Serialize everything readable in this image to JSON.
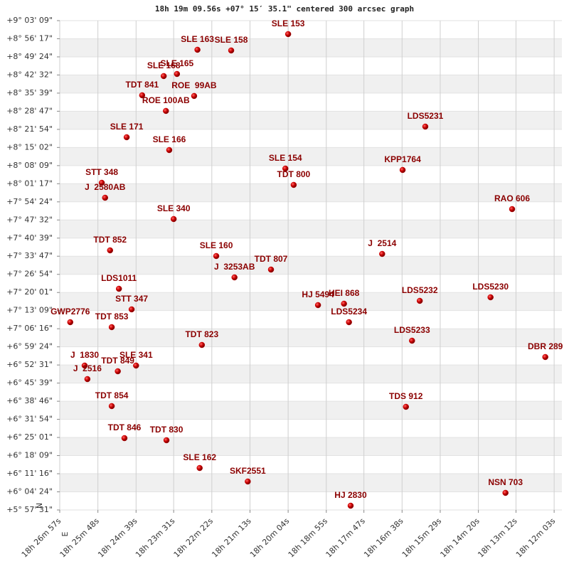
{
  "chart_data": {
    "type": "scatter",
    "title": "18h 19m 09.56s +07° 15′ 35.1\" centered 300 arcsec graph",
    "orientation": {
      "north": "N",
      "east": "E"
    },
    "xlim": [
      66417,
      65509
    ],
    "ylim": [
      21451,
      32589
    ],
    "xticks": [
      {
        "value": 66417,
        "label": "18h 26m 57s"
      },
      {
        "value": 66348,
        "label": "18h 25m 48s"
      },
      {
        "value": 66279,
        "label": "18h 24m 39s"
      },
      {
        "value": 66211,
        "label": "18h 23m 31s"
      },
      {
        "value": 66142,
        "label": "18h 22m 22s"
      },
      {
        "value": 66073,
        "label": "18h 21m 13s"
      },
      {
        "value": 66004,
        "label": "18h 20m 04s"
      },
      {
        "value": 65935,
        "label": "18h 18m 55s"
      },
      {
        "value": 65867,
        "label": "18h 17m 47s"
      },
      {
        "value": 65798,
        "label": "18h 16m 38s"
      },
      {
        "value": 65729,
        "label": "18h 15m 29s"
      },
      {
        "value": 65660,
        "label": "18h 14m 20s"
      },
      {
        "value": 65592,
        "label": "18h 13m 12s"
      },
      {
        "value": 65523,
        "label": "18h 12m 03s"
      }
    ],
    "yticks": [
      {
        "value": 32589,
        "label": "+9° 03' 09\""
      },
      {
        "value": 32177,
        "label": "+8° 56' 17\""
      },
      {
        "value": 31764,
        "label": "+8° 49' 24\""
      },
      {
        "value": 31352,
        "label": "+8° 42' 32\""
      },
      {
        "value": 30939,
        "label": "+8° 35' 39\""
      },
      {
        "value": 30527,
        "label": "+8° 28' 47\""
      },
      {
        "value": 30114,
        "label": "+8° 21' 54\""
      },
      {
        "value": 29702,
        "label": "+8° 15' 02\""
      },
      {
        "value": 29289,
        "label": "+8° 08' 09\""
      },
      {
        "value": 28877,
        "label": "+8° 01' 17\""
      },
      {
        "value": 28464,
        "label": "+7° 54' 24\""
      },
      {
        "value": 28052,
        "label": "+7° 47' 32\""
      },
      {
        "value": 27639,
        "label": "+7° 40' 39\""
      },
      {
        "value": 27227,
        "label": "+7° 33' 47\""
      },
      {
        "value": 26814,
        "label": "+7° 26' 54\""
      },
      {
        "value": 26401,
        "label": "+7° 20' 01\""
      },
      {
        "value": 25989,
        "label": "+7° 13' 09\""
      },
      {
        "value": 25576,
        "label": "+7° 06' 16\""
      },
      {
        "value": 25164,
        "label": "+6° 59' 24\""
      },
      {
        "value": 24751,
        "label": "+6° 52' 31\""
      },
      {
        "value": 24339,
        "label": "+6° 45' 39\""
      },
      {
        "value": 23926,
        "label": "+6° 38' 46\""
      },
      {
        "value": 23514,
        "label": "+6° 31' 54\""
      },
      {
        "value": 23101,
        "label": "+6° 25' 01\""
      },
      {
        "value": 22689,
        "label": "+6° 18' 09\""
      },
      {
        "value": 22276,
        "label": "+6° 11' 16\""
      },
      {
        "value": 21864,
        "label": "+6° 04' 24\""
      },
      {
        "value": 21451,
        "label": "+5° 57' 31\""
      }
    ],
    "labels": [
      "SLE 153",
      "SLE 163",
      "SLE 158",
      "SLE 165",
      "SLE 168",
      "TDT 841",
      "ROE  99AB",
      "ROE 100AB",
      "LDS5231",
      "SLE 171",
      "SLE 166",
      "SLE 154",
      "KPP1764",
      "TDT 800",
      "STT 348",
      "J  2580AB",
      "RAO 606",
      "SLE 340",
      "TDT 852",
      "J  2514",
      "SLE 160",
      "TDT 807",
      "J  3253AB",
      "LDS1011",
      "LDS5230",
      "LDS5232",
      "HEI 868",
      "HJ 5494",
      "STT 347",
      "LDS5234",
      "GWP2776",
      "TDT 853",
      "LDS5233",
      "TDT 823",
      "DBR 289",
      "SLE 341",
      "J  1830",
      "TDT 849",
      "J  2516",
      "TDS 912",
      "TDT 854",
      "TDT 846",
      "TDT 830",
      "SLE 162",
      "SKF2551",
      "NSN 703",
      "HJ 2830"
    ],
    "x": [
      66004,
      66168,
      66107,
      66205,
      66229,
      66268,
      66174,
      66225,
      65756,
      66296,
      66219,
      66009,
      65797,
      65994,
      66341,
      66335,
      65599,
      66211,
      66326,
      65834,
      66134,
      66035,
      66101,
      66310,
      65638,
      65766,
      65903,
      65950,
      66287,
      65894,
      66398,
      66323,
      65780,
      66160,
      65539,
      66279,
      66372,
      66312,
      66367,
      65791,
      66323,
      66300,
      66224,
      66164,
      66077,
      65611,
      65891
    ],
    "values": [
      32282,
      31926,
      31910,
      31375,
      31327,
      30890,
      30874,
      30534,
      30177,
      29935,
      29643,
      29222,
      29190,
      28850,
      28898,
      28558,
      28299,
      28073,
      27360,
      27279,
      27231,
      26923,
      26745,
      26486,
      26292,
      26211,
      26146,
      26114,
      26017,
      25725,
      25725,
      25612,
      25304,
      25207,
      24932,
      24738,
      24738,
      24608,
      24430,
      23799,
      23815,
      23086,
      23038,
      22406,
      22099,
      21840,
      21548
    ],
    "color": "#cc0000",
    "label_color": "#8b0000",
    "grid": true
  }
}
